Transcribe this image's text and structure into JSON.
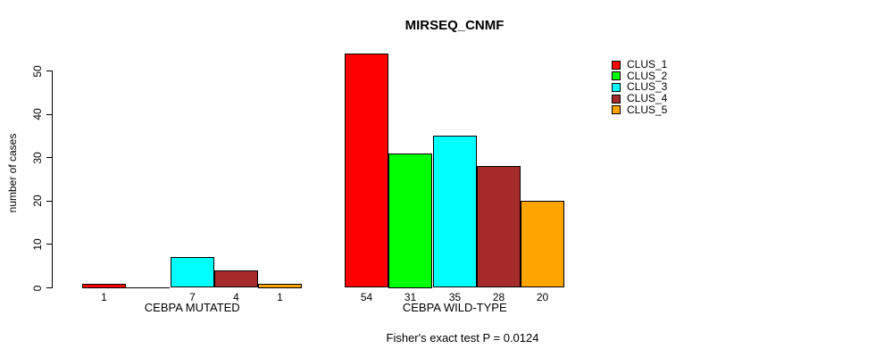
{
  "chart_data": {
    "type": "bar",
    "title": "MIRSEQ_CNMF",
    "ylabel": "number of cases",
    "xlabel": "",
    "categories": [
      "CEBPA MUTATED",
      "CEBPA WILD-TYPE"
    ],
    "series": [
      {
        "name": "CLUS_1",
        "color": "#ff0000",
        "values": [
          1,
          54
        ]
      },
      {
        "name": "CLUS_2",
        "color": "#00ff00",
        "values": [
          0,
          31
        ]
      },
      {
        "name": "CLUS_3",
        "color": "#00ffff",
        "values": [
          7,
          35
        ]
      },
      {
        "name": "CLUS_4",
        "color": "#a52a2a",
        "values": [
          4,
          28
        ]
      },
      {
        "name": "CLUS_5",
        "color": "#ffa500",
        "values": [
          1,
          20
        ]
      }
    ],
    "bar_value_labels": [
      [
        "1",
        "",
        "7",
        "4",
        "1"
      ],
      [
        "54",
        "31",
        "35",
        "28",
        "20"
      ]
    ],
    "yticks": [
      0,
      10,
      20,
      30,
      40,
      50
    ],
    "ylim": [
      0,
      50
    ],
    "grid": false,
    "legend_position": "right-top",
    "annotation": "Fisher's exact test P = 0.0124"
  }
}
